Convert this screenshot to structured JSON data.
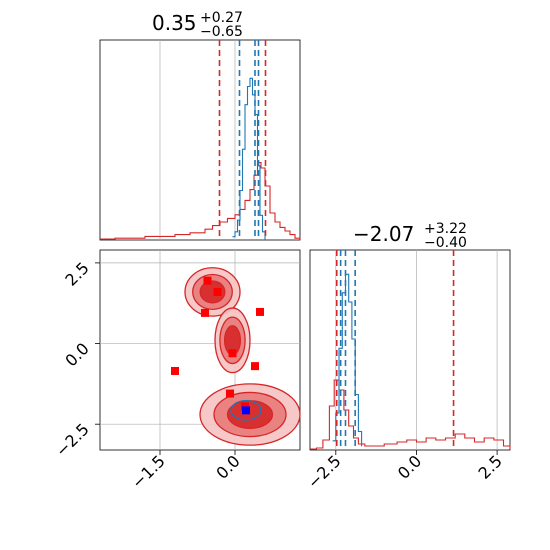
{
  "colors": {
    "red": "#d62728",
    "blue": "#1f77b4",
    "grid": "#b0b0b0",
    "marker_red": "#ff0000",
    "marker_blue": "#0000ff"
  },
  "chart_data": [
    {
      "type": "histogram",
      "panel": "top-left marginal (parameter 1)",
      "title": {
        "median": "0.35",
        "plus": "+0.27",
        "minus": "−0.65"
      },
      "xlim": [
        -2.7,
        1.3
      ],
      "vlines_red": [
        -0.31,
        0.61
      ],
      "vlines_blue": [
        0.09,
        0.47,
        0.4
      ],
      "red_hist": {
        "x": [
          -2.7,
          -2.4,
          -2.1,
          -1.8,
          -1.5,
          -1.2,
          -0.9,
          -0.6,
          -0.45,
          -0.3,
          -0.15,
          0.0,
          0.1,
          0.2,
          0.3,
          0.38,
          0.45,
          0.52,
          0.6,
          0.7,
          0.8,
          0.9,
          1.0,
          1.1,
          1.2,
          1.3
        ],
        "y": [
          0.005,
          0.01,
          0.01,
          0.02,
          0.02,
          0.03,
          0.04,
          0.06,
          0.08,
          0.1,
          0.12,
          0.14,
          0.17,
          0.22,
          0.28,
          0.36,
          0.43,
          0.4,
          0.3,
          0.15,
          0.1,
          0.07,
          0.05,
          0.03,
          0.01,
          0.005
        ]
      },
      "blue_hist": {
        "x": [
          -0.05,
          0.0,
          0.05,
          0.1,
          0.15,
          0.2,
          0.25,
          0.3,
          0.35,
          0.4,
          0.45,
          0.5,
          0.55,
          0.6
        ],
        "y": [
          0.02,
          0.05,
          0.12,
          0.3,
          0.55,
          0.82,
          0.93,
          0.98,
          0.88,
          0.76,
          0.45,
          0.15,
          0.05,
          0.0
        ]
      }
    },
    {
      "type": "scatter",
      "panel": "bottom-left 2D (x: parameter 1, y: parameter 2)",
      "xlim": [
        -2.7,
        1.3
      ],
      "ylim": [
        -3.3,
        2.9
      ],
      "xticks": [
        "−1.5",
        "0.0"
      ],
      "xtick_values": [
        -1.5,
        0.0
      ],
      "yticks": [
        "2.5",
        "0.0",
        "−2.5"
      ],
      "ytick_values": [
        2.5,
        0.0,
        -2.5
      ],
      "red_points": [
        {
          "x": -0.55,
          "y": 1.95
        },
        {
          "x": -0.35,
          "y": 1.6
        },
        {
          "x": -0.6,
          "y": 0.95
        },
        {
          "x": 0.5,
          "y": 0.98
        },
        {
          "x": -0.05,
          "y": -0.3
        },
        {
          "x": 0.4,
          "y": -0.7
        },
        {
          "x": -1.2,
          "y": -0.85
        },
        {
          "x": -0.1,
          "y": -1.55
        },
        {
          "x": 0.2,
          "y": -1.95
        }
      ],
      "blue_point": {
        "x": 0.22,
        "y": -2.07
      },
      "red_contour_blobs": [
        {
          "cx": -0.45,
          "cy": 1.6,
          "rx": 0.55,
          "ry": 0.75
        },
        {
          "cx": -0.05,
          "cy": 0.1,
          "rx": 0.35,
          "ry": 1.0
        },
        {
          "cx": 0.3,
          "cy": -2.2,
          "rx": 1.0,
          "ry": 0.95
        }
      ]
    },
    {
      "type": "histogram",
      "panel": "bottom-right marginal (parameter 2)",
      "title": {
        "median": "−2.07",
        "plus": "+3.22",
        "minus": "−0.40"
      },
      "xlim": [
        -3.3,
        2.9
      ],
      "xticks": [
        "−2.5",
        "0.0",
        "2.5"
      ],
      "xtick_values": [
        -2.5,
        0.0,
        2.5
      ],
      "vlines_red": [
        -2.47,
        1.15
      ],
      "vlines_blue": [
        -2.35,
        -1.9,
        -2.2
      ],
      "red_hist": {
        "x": [
          -3.3,
          -3.1,
          -2.9,
          -2.7,
          -2.55,
          -2.4,
          -2.25,
          -2.1,
          -1.95,
          -1.8,
          -1.6,
          -1.3,
          -1.0,
          -0.6,
          -0.3,
          0.0,
          0.3,
          0.6,
          0.9,
          1.2,
          1.5,
          1.8,
          2.1,
          2.4,
          2.7,
          2.9
        ],
        "y": [
          0.005,
          0.01,
          0.05,
          0.22,
          0.35,
          0.3,
          0.2,
          0.12,
          0.06,
          0.03,
          0.02,
          0.02,
          0.03,
          0.04,
          0.05,
          0.04,
          0.06,
          0.05,
          0.06,
          0.08,
          0.06,
          0.04,
          0.06,
          0.05,
          0.02,
          0.005
        ]
      },
      "blue_hist": {
        "x": [
          -2.6,
          -2.5,
          -2.4,
          -2.3,
          -2.2,
          -2.1,
          -2.0,
          -1.9,
          -1.8,
          -1.7
        ],
        "y": [
          0.05,
          0.2,
          0.55,
          0.85,
          0.95,
          0.8,
          0.6,
          0.3,
          0.1,
          0.02
        ]
      }
    }
  ]
}
